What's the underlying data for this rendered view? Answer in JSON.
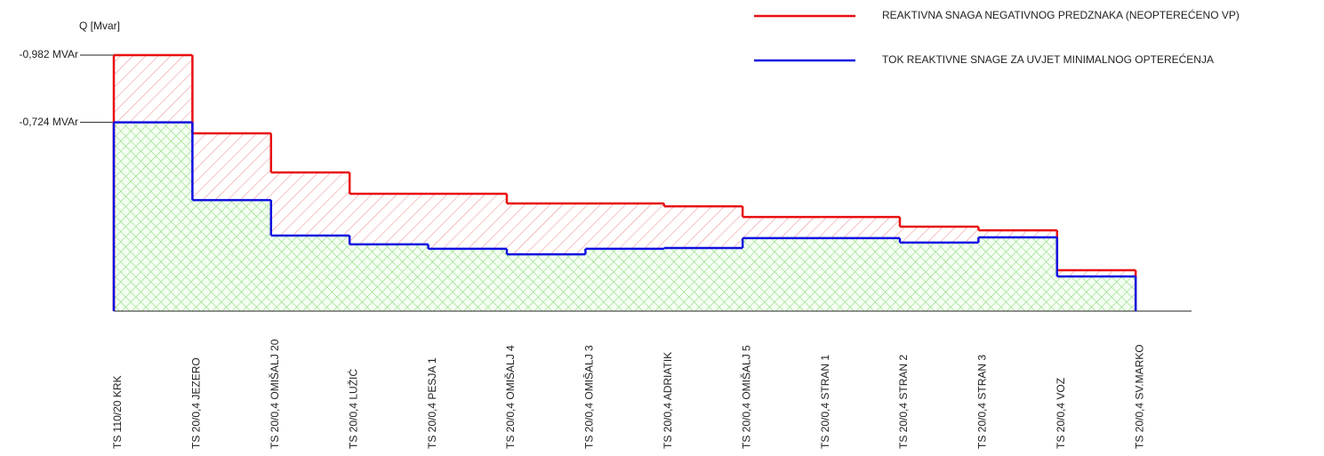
{
  "chart_data": {
    "type": "step",
    "y_label": "Q [Mvar]",
    "categories": [
      "TS 110/20 KRK",
      "TS 20/0,4 JEZERO",
      "TS 20/0,4 OMIŠALJ 20",
      "TS 20/0,4 LUŽIĆ",
      "TS 20/0,4 PESJA 1",
      "TS 20/0,4 OMIŠALJ 4",
      "TS 20/0,4 OMIŠALJ 3",
      "TS 20/0,4 ADRIATIK",
      "TS 20/0,4 OMIŠALJ 5",
      "TS 20/0,4 STRAN 1",
      "TS 20/0,4 STRAN 2",
      "TS 20/0,4 STRAN 3",
      "TS 20/0,4 VOZ",
      "TS 20/0,4 SV.MARKO"
    ],
    "series": [
      {
        "name": "REAKTIVNA SNAGA NEGATIVNOG PREDZNAKA (NEOPTEREĆENO VP)",
        "color": "#e81010",
        "values": [
          -0.982,
          -0.682,
          -0.532,
          -0.45,
          -0.45,
          -0.413,
          -0.413,
          -0.402,
          -0.361,
          -0.361,
          -0.324,
          -0.31,
          -0.157,
          null
        ]
      },
      {
        "name": "TOK REAKTIVNE SNAGE ZA UVJET MINIMALNOG OPTEREĆENJA",
        "color": "#1010e0",
        "values": [
          -0.724,
          -0.426,
          -0.29,
          -0.256,
          -0.239,
          -0.218,
          -0.239,
          -0.242,
          -0.28,
          -0.28,
          -0.263,
          -0.283,
          -0.133,
          null
        ]
      }
    ],
    "ylim": [
      0,
      -1.1
    ],
    "yticks": [
      {
        "value": -0.982,
        "label": "-0,982 MVAr"
      },
      {
        "value": -0.724,
        "label": "-0,724 MVAr"
      }
    ]
  }
}
